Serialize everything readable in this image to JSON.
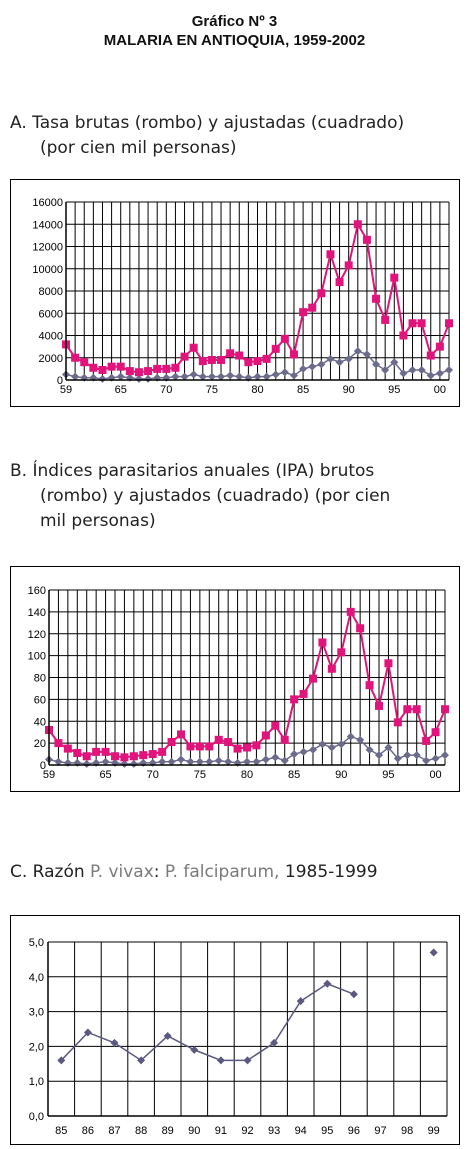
{
  "header": {
    "line1": "Gráfico Nº 3",
    "line2": "MALARIA EN ANTIOQUIA, 1959-2002"
  },
  "captions": {
    "a_line1": "A. Tasa brutas (rombo) y ajustadas (cuadrado)",
    "a_line2": "(por cien mil personas)",
    "b_line1": "B. Índices parasitarios anuales (IPA) brutos",
    "b_line2": "(rombo) y ajustados (cuadrado) (por cien",
    "b_line3": "mil personas)",
    "c_prefix": "C. Razón ",
    "c_vivax": "P. vivax",
    "c_sep": ": ",
    "c_falc": "P. falciparum,",
    "c_years": " 1985-1999"
  },
  "colors": {
    "adjusted": "#e0147a",
    "crude": "#6b6b8c",
    "ratio": "#5a5a80",
    "grid": "#000000"
  },
  "chart_data": [
    {
      "type": "line",
      "title": "",
      "x": [
        1959,
        1960,
        1961,
        1962,
        1963,
        1964,
        1965,
        1966,
        1967,
        1968,
        1969,
        1970,
        1971,
        1972,
        1973,
        1974,
        1975,
        1976,
        1977,
        1978,
        1979,
        1980,
        1981,
        1982,
        1983,
        1984,
        1985,
        1986,
        1987,
        1988,
        1989,
        1990,
        1991,
        1992,
        1993,
        1994,
        1995,
        1996,
        1997,
        1998,
        1999,
        2000,
        2001
      ],
      "xticks": [
        "59",
        "65",
        "70",
        "75",
        "80",
        "85",
        "90",
        "95",
        "00"
      ],
      "ylim": [
        0,
        16000
      ],
      "yticks": [
        "0",
        "2000",
        "4000",
        "6000",
        "8000",
        "10000",
        "12000",
        "14000",
        "16000"
      ],
      "grid": true,
      "series": [
        {
          "marker": "square",
          "values": [
            3200,
            2000,
            1600,
            1100,
            900,
            1200,
            1200,
            800,
            700,
            800,
            1000,
            1000,
            1100,
            2100,
            2900,
            1700,
            1800,
            1800,
            2400,
            2200,
            1600,
            1700,
            1900,
            2800,
            3700,
            2300,
            6100,
            6500,
            7800,
            11300,
            8800,
            10300,
            14000,
            12600,
            7300,
            5400,
            9200,
            4000,
            5100,
            5100,
            2200,
            3000,
            5100
          ]
        },
        {
          "marker": "diamond",
          "values": [
            500,
            300,
            200,
            200,
            100,
            200,
            300,
            200,
            100,
            100,
            200,
            200,
            300,
            300,
            500,
            300,
            300,
            300,
            400,
            300,
            200,
            300,
            300,
            500,
            700,
            400,
            1000,
            1200,
            1400,
            1900,
            1600,
            1900,
            2600,
            2300,
            1400,
            900,
            1600,
            600,
            900,
            900,
            400,
            600,
            900
          ]
        }
      ]
    },
    {
      "type": "line",
      "title": "",
      "x": [
        1959,
        1960,
        1961,
        1962,
        1963,
        1964,
        1965,
        1966,
        1967,
        1968,
        1969,
        1970,
        1971,
        1972,
        1973,
        1974,
        1975,
        1976,
        1977,
        1978,
        1979,
        1980,
        1981,
        1982,
        1983,
        1984,
        1985,
        1986,
        1987,
        1988,
        1989,
        1990,
        1991,
        1992,
        1993,
        1994,
        1995,
        1996,
        1997,
        1998,
        1999,
        2000,
        2001
      ],
      "xticks": [
        "59",
        "65",
        "70",
        "75",
        "80",
        "85",
        "90",
        "95",
        "00"
      ],
      "ylim": [
        0,
        160
      ],
      "yticks": [
        "0",
        "20",
        "40",
        "60",
        "80",
        "100",
        "120",
        "140",
        "160"
      ],
      "grid": true,
      "series": [
        {
          "marker": "square",
          "values": [
            32,
            20,
            15,
            11,
            8,
            12,
            12,
            8,
            7,
            8,
            9,
            10,
            12,
            21,
            28,
            17,
            17,
            17,
            23,
            21,
            15,
            16,
            18,
            27,
            36,
            23,
            60,
            65,
            79,
            112,
            88,
            103,
            140,
            125,
            73,
            54,
            93,
            39,
            51,
            51,
            22,
            30,
            51
          ]
        },
        {
          "marker": "diamond",
          "values": [
            5,
            3,
            2,
            2,
            1,
            2,
            3,
            2,
            1,
            1,
            2,
            2,
            3,
            3,
            5,
            3,
            3,
            3,
            4,
            3,
            2,
            3,
            3,
            5,
            7,
            4,
            10,
            12,
            14,
            19,
            16,
            19,
            26,
            23,
            14,
            9,
            16,
            6,
            9,
            9,
            4,
            6,
            9
          ]
        }
      ]
    },
    {
      "type": "line",
      "title": "",
      "categories": [
        "85",
        "86",
        "87",
        "88",
        "89",
        "90",
        "91",
        "92",
        "93",
        "94",
        "95",
        "96",
        "97",
        "98",
        "99"
      ],
      "ylim": [
        0,
        5
      ],
      "yticks": [
        "0,0",
        "1,0",
        "2,0",
        "3,0",
        "4,0",
        "5,0"
      ],
      "grid": true,
      "series": [
        {
          "marker": "diamond",
          "values": [
            1.6,
            2.4,
            2.1,
            1.6,
            2.3,
            1.9,
            1.6,
            1.6,
            2.1,
            3.3,
            3.8,
            3.5,
            null,
            null,
            4.7
          ]
        }
      ]
    }
  ]
}
